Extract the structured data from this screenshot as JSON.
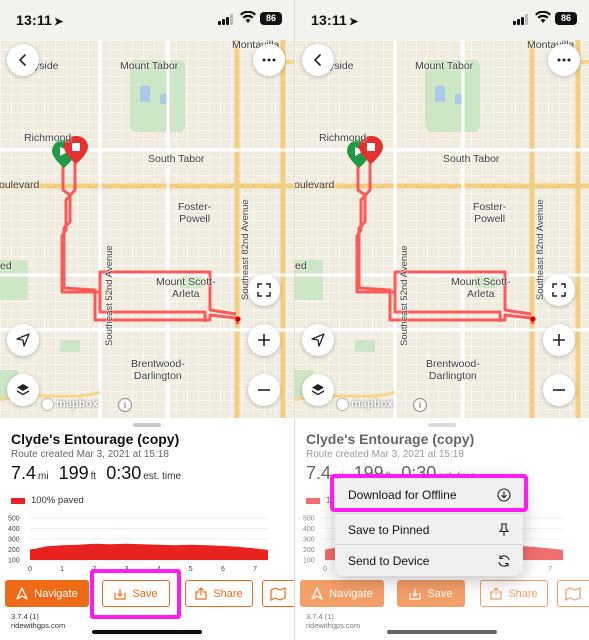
{
  "status_bar": {
    "time": "13:11",
    "battery": "86"
  },
  "map": {
    "labels": {
      "montavilla": "Montavilla",
      "yside": "yside",
      "mount_tabor": "Mount Tabor",
      "richmond": "Richmond",
      "south_tabor": "South Tabor",
      "boulevard": "oulevard",
      "foster_powell": "Foster-\nPowell",
      "ed": "ed",
      "mount_scott_arleta": "Mount Scott-\nArleta",
      "brentwood_darlington": "Brentwood-\nDarlington",
      "se52": "Southeast 52nd Avenue",
      "se82": "Southeast 82nd Avenue"
    },
    "attribution": "mapbox",
    "info_symbol": "i"
  },
  "route": {
    "title": "Clyde's Entourage (copy)",
    "created": "Route created Mar 3, 2021 at 15:18",
    "distance_value": "7.4",
    "distance_unit": "mi",
    "elevation_value": "199",
    "elevation_unit": "ft",
    "time_value": "0:30",
    "time_unit": "est. time",
    "paved": "100% paved",
    "paved_partial": "100"
  },
  "chart_data": {
    "type": "area",
    "title": "",
    "xlabel": "",
    "ylabel": "",
    "y_ticks": [
      "500",
      "400",
      "300",
      "200",
      "100"
    ],
    "x_ticks": [
      "0",
      "1",
      "2",
      "3",
      "4",
      "5",
      "6",
      "7"
    ],
    "ylim": [
      100,
      500
    ],
    "xlim": [
      0,
      7.4
    ],
    "x": [
      0,
      0.2,
      0.5,
      1,
      1.5,
      2,
      2.5,
      3,
      3.5,
      4,
      4.5,
      5,
      5.5,
      6,
      6.5,
      7,
      7.4
    ],
    "y": [
      200,
      210,
      230,
      240,
      245,
      255,
      250,
      255,
      250,
      245,
      240,
      245,
      240,
      235,
      225,
      210,
      195
    ],
    "colors": {
      "fill": "#e8231f"
    }
  },
  "actions": {
    "navigate": "Navigate",
    "save": "Save",
    "share": "Share"
  },
  "footer": {
    "version": "3.7.4 (1)",
    "site": "ridewithgps.com"
  },
  "menu": {
    "download": "Download for Offline",
    "save_pinned": "Save to Pinned",
    "send_device": "Send to Device"
  },
  "colors": {
    "accent": "#ee6a17",
    "highlight": "#ff1cf2",
    "route": "#ff4a4a"
  }
}
